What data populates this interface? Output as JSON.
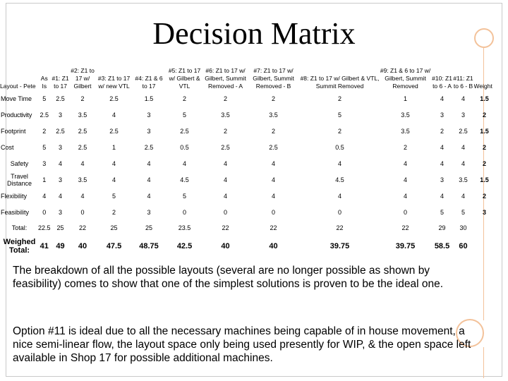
{
  "slide": {
    "title": "Decision Matrix"
  },
  "matrix": {
    "headers": [
      "Layout - Pete",
      "As Is",
      "#1: Z1 to 17",
      "#2: Z1 to 17 w/ Gilbert",
      "#3: Z1 to 17 w/ new VTL",
      "#4: Z1 & 6 to 17",
      "#5: Z1 to 17 w/ Gilbert & VTL",
      "#6: Z1 to 17 w/ Gilbert, Summit Removed - A",
      "#7: Z1 to 17 w/ Gilbert, Summit Removed - B",
      "#8: Z1 to 17 w/ Gilbert & VTL, Summit Removed",
      "#9: Z1 & 6 to 17 w/ Gilbert, Summit Removed",
      "#10: Z1 to 6 - A",
      "#11: Z1 to 6 - B",
      "Weight"
    ],
    "rows": [
      {
        "label": "Move Time",
        "values": [
          "5",
          "2.5",
          "2",
          "2.5",
          "1.5",
          "2",
          "2",
          "2",
          "2",
          "1",
          "4",
          "4"
        ],
        "weight": "1.5"
      },
      {
        "label": "Productivity",
        "values": [
          "2.5",
          "3",
          "3.5",
          "4",
          "3",
          "5",
          "3.5",
          "3.5",
          "5",
          "3.5",
          "3",
          "3"
        ],
        "weight": "2"
      },
      {
        "label": "Footprint",
        "values": [
          "2",
          "2.5",
          "2.5",
          "2.5",
          "3",
          "2.5",
          "2",
          "2",
          "2",
          "3.5",
          "2",
          "2.5"
        ],
        "weight": "1.5"
      },
      {
        "label": "Cost",
        "values": [
          "5",
          "3",
          "2.5",
          "1",
          "2.5",
          "0.5",
          "2.5",
          "2.5",
          "0.5",
          "2",
          "4",
          "4"
        ],
        "weight": "2"
      },
      {
        "label": "Safety",
        "values": [
          "3",
          "4",
          "4",
          "4",
          "4",
          "4",
          "4",
          "4",
          "4",
          "4",
          "4",
          "4"
        ],
        "weight": "2"
      },
      {
        "label": "Travel Distance",
        "values": [
          "1",
          "3",
          "3.5",
          "4",
          "4",
          "4.5",
          "4",
          "4",
          "4.5",
          "4",
          "3",
          "3.5"
        ],
        "weight": "1.5"
      },
      {
        "label": "Flexibility",
        "values": [
          "4",
          "4",
          "4",
          "5",
          "4",
          "5",
          "4",
          "4",
          "4",
          "4",
          "4",
          "4"
        ],
        "weight": "2"
      },
      {
        "label": "Feasibility",
        "values": [
          "0",
          "3",
          "0",
          "2",
          "3",
          "0",
          "0",
          "0",
          "0",
          "0",
          "5",
          "5"
        ],
        "weight": "3"
      }
    ],
    "total": {
      "label": "Total:",
      "values": [
        "22.5",
        "25",
        "22",
        "25",
        "25",
        "23.5",
        "22",
        "22",
        "22",
        "22",
        "29",
        "30"
      ]
    },
    "weighted": {
      "label": "Weighed Total:",
      "values": [
        "41",
        "49",
        "40",
        "47.5",
        "48.75",
        "42.5",
        "40",
        "40",
        "39.75",
        "39.75",
        "58.5",
        "60"
      ]
    }
  },
  "text": {
    "para1": "The breakdown of all the possible layouts (several are no longer possible as shown by feasibility) comes to show that one of the simplest solutions is proven to be the ideal one.",
    "para2": "Option #11 is ideal due to all the necessary machines being capable of in house movement, a nice semi-linear flow, the layout space only being used presently for WIP, & the open space left available in Shop 17 for possible additional machines."
  }
}
